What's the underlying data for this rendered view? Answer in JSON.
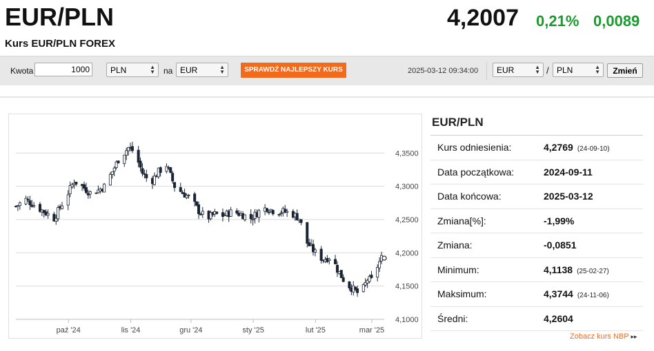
{
  "header": {
    "title": "EUR/PLN",
    "subtitle": "Kurs EUR/PLN FOREX",
    "rate": "4,2007",
    "change_pct": "0,21%",
    "change_abs": "0,0089",
    "accent_color": "#1a9b2e"
  },
  "toolbar": {
    "amount_label": "Kwota",
    "amount_value": "1000",
    "from_currency": "PLN",
    "to_label": "na",
    "to_currency": "EUR",
    "best_rate_button": "SPRAWDŹ NAJLEPSZY KURS",
    "best_rate_color": "#f26a1b",
    "timestamp": "2025-03-12 09:34:00",
    "pair_base": "EUR",
    "pair_sep": "/",
    "pair_quote": "PLN",
    "swap_button": "Zmień"
  },
  "stats": {
    "title": "EUR/PLN",
    "rows": [
      {
        "label": "Kurs odniesienia:",
        "value": "4,2769",
        "date": "(24-09-10)"
      },
      {
        "label": "Data początkowa:",
        "value": "2024-09-11",
        "date": ""
      },
      {
        "label": "Data końcowa:",
        "value": "2025-03-12",
        "date": ""
      },
      {
        "label": "Zmiana[%]:",
        "value": "-1,99%",
        "date": ""
      },
      {
        "label": "Zmiana:",
        "value": "-0,0851",
        "date": ""
      },
      {
        "label": "Minimum:",
        "value": "4,1138",
        "date": "(25-02-27)"
      },
      {
        "label": "Maksimum:",
        "value": "4,3744",
        "date": "(24-11-06)"
      },
      {
        "label": "Średni:",
        "value": "4,2604",
        "date": ""
      }
    ],
    "nbp_link": "Zobacz kurs NBP",
    "nbp_arrow": "▸▸"
  },
  "chart_data": {
    "type": "candlestick",
    "x_tick_labels": [
      "paź '24",
      "lis '24",
      "gru '24",
      "sty '25",
      "lut '25",
      "mar '25"
    ],
    "y_tick_labels": [
      "4,1000",
      "4,1500",
      "4,2000",
      "4,2500",
      "4,3000",
      "4,3500"
    ],
    "y_ticks": [
      4.1,
      4.15,
      4.2,
      4.25,
      4.3,
      4.35
    ],
    "ylim": [
      4.1,
      4.4
    ],
    "x_start": "2024-09-11",
    "x_end": "2025-03-12",
    "grid": true,
    "close_path": [
      [
        "2024-09-11",
        4.27
      ],
      [
        "2024-09-16",
        4.28
      ],
      [
        "2024-09-20",
        4.272
      ],
      [
        "2024-09-25",
        4.262
      ],
      [
        "2024-09-30",
        4.252
      ],
      [
        "2024-10-03",
        4.268
      ],
      [
        "2024-10-07",
        4.29
      ],
      [
        "2024-10-10",
        4.308
      ],
      [
        "2024-10-14",
        4.3
      ],
      [
        "2024-10-18",
        4.29
      ],
      [
        "2024-10-22",
        4.294
      ],
      [
        "2024-10-25",
        4.3
      ],
      [
        "2024-10-29",
        4.322
      ],
      [
        "2024-11-01",
        4.34
      ],
      [
        "2024-11-06",
        4.358
      ],
      [
        "2024-11-09",
        4.352
      ],
      [
        "2024-11-13",
        4.32
      ],
      [
        "2024-11-17",
        4.305
      ],
      [
        "2024-11-21",
        4.322
      ],
      [
        "2024-11-25",
        4.332
      ],
      [
        "2024-11-29",
        4.3
      ],
      [
        "2024-12-03",
        4.29
      ],
      [
        "2024-12-07",
        4.282
      ],
      [
        "2024-12-11",
        4.263
      ],
      [
        "2024-12-15",
        4.252
      ],
      [
        "2024-12-19",
        4.258
      ],
      [
        "2024-12-23",
        4.256
      ],
      [
        "2024-12-28",
        4.262
      ],
      [
        "2025-01-02",
        4.257
      ],
      [
        "2025-01-06",
        4.252
      ],
      [
        "2025-01-10",
        4.262
      ],
      [
        "2025-01-14",
        4.268
      ],
      [
        "2025-01-18",
        4.262
      ],
      [
        "2025-01-22",
        4.262
      ],
      [
        "2025-01-26",
        4.26
      ],
      [
        "2025-01-30",
        4.252
      ],
      [
        "2025-02-03",
        4.215
      ],
      [
        "2025-02-07",
        4.2
      ],
      [
        "2025-02-11",
        4.19
      ],
      [
        "2025-02-15",
        4.195
      ],
      [
        "2025-02-18",
        4.175
      ],
      [
        "2025-02-22",
        4.155
      ],
      [
        "2025-02-26",
        4.145
      ],
      [
        "2025-02-28",
        4.14
      ],
      [
        "2025-03-02",
        4.14
      ],
      [
        "2025-03-05",
        4.16
      ],
      [
        "2025-03-08",
        4.158
      ],
      [
        "2025-03-10",
        4.18
      ],
      [
        "2025-03-12",
        4.192
      ]
    ]
  }
}
